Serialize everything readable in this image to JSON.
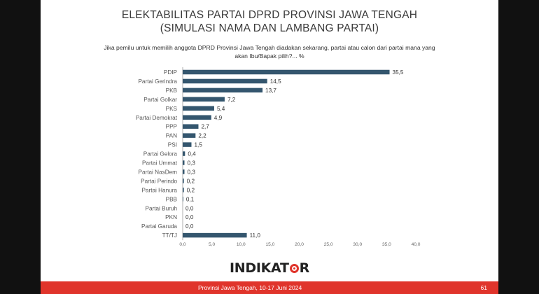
{
  "title": {
    "line1": "ELEKTABILITAS PARTAI DPRD PROVINSI JAWA TENGAH",
    "line2": "(SIMULASI NAMA DAN LAMBANG PARTAI)"
  },
  "question": {
    "line1": "Jika pemilu untuk memilih anggota DPRD Provinsi Jawa Tengah diadakan sekarang, partai atau calon dari partai mana yang",
    "line2": "akan Ibu/Bapak pilih?... %"
  },
  "chart_data": {
    "type": "bar",
    "orientation": "horizontal",
    "categories": [
      "PDIP",
      "Partai Gerindra",
      "PKB",
      "Partai Golkar",
      "PKS",
      "Partai Demokrat",
      "PPP",
      "PAN",
      "PSI",
      "Partai Gelora",
      "Partai Ummat",
      "Partai NasDem",
      "Partai Perindo",
      "Partai Hanura",
      "PBB",
      "Partai Buruh",
      "PKN",
      "Partai Garuda",
      "TT/TJ"
    ],
    "values": [
      35.5,
      14.5,
      13.7,
      7.2,
      5.4,
      4.9,
      2.7,
      2.2,
      1.5,
      0.4,
      0.3,
      0.3,
      0.2,
      0.2,
      0.1,
      0.0,
      0.0,
      0.0,
      11.0
    ],
    "value_labels": [
      "35,5",
      "14,5",
      "13,7",
      "7,2",
      "5,4",
      "4,9",
      "2,7",
      "2,2",
      "1,5",
      "0,4",
      "0,3",
      "0,3",
      "0,2",
      "0,2",
      "0,1",
      "0,0",
      "0,0",
      "0,0",
      "11,0"
    ],
    "xlim": [
      0,
      40
    ],
    "ticks": [
      0,
      5,
      10,
      15,
      20,
      25,
      30,
      35,
      40
    ],
    "tick_labels": [
      "0,0",
      "5,0",
      "10,0",
      "15,0",
      "20,0",
      "25,0",
      "30,0",
      "35,0",
      "40,0"
    ],
    "bar_color": "#34566e",
    "grid": false,
    "legend": "none"
  },
  "logo": {
    "text_before": "INDIKAT",
    "text_after": "R"
  },
  "footer": {
    "text": "Provinsi Jawa Tengah, 10-17 Juni 2024",
    "page": "61",
    "color": "#e0342b"
  }
}
